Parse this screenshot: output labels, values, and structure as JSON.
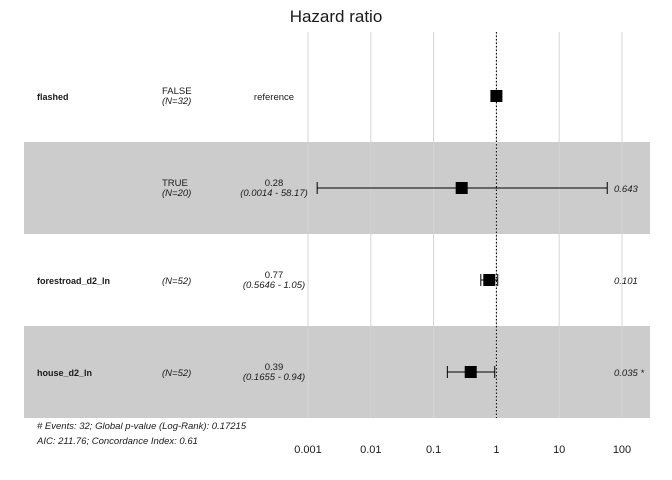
{
  "chart_data": {
    "type": "forest",
    "title": "Hazard ratio",
    "x_scale": "log10",
    "xlim": [
      0.0003,
      300
    ],
    "x_ticks": [
      0.001,
      0.01,
      0.1,
      1,
      10,
      100
    ],
    "x_tick_labels": [
      "0.001",
      "0.01",
      "0.1",
      "1",
      "10",
      "100"
    ],
    "reference_line": 1,
    "rows": [
      {
        "variable": "flashed",
        "level": "FALSE",
        "n": "(N=32)",
        "estimate_text": "reference",
        "ci_text": "",
        "p_text": "",
        "hr": 1,
        "lower": null,
        "upper": null,
        "shaded": false
      },
      {
        "variable": "",
        "level": "TRUE",
        "n": "(N=20)",
        "estimate_text": "0.28",
        "ci_text": "(0.0014 - 58.17)",
        "p_text": "0.643",
        "hr": 0.28,
        "lower": 0.0014,
        "upper": 58.17,
        "shaded": true
      },
      {
        "variable": "forestroad_d2_ln",
        "level": "",
        "n": "(N=52)",
        "estimate_text": "0.77",
        "ci_text": "(0.5646 -  1.05)",
        "p_text": "0.101",
        "hr": 0.77,
        "lower": 0.5646,
        "upper": 1.05,
        "shaded": false
      },
      {
        "variable": "house_d2_ln",
        "level": "",
        "n": "(N=52)",
        "estimate_text": "0.39",
        "ci_text": "(0.1655 -  0.94)",
        "p_text": "0.035 *",
        "hr": 0.39,
        "lower": 0.1655,
        "upper": 0.94,
        "shaded": true
      }
    ],
    "footer": [
      "# Events: 32; Global p-value (Log-Rank): 0.17215",
      "AIC: 211.76; Concordance Index: 0.61"
    ]
  },
  "colors": {
    "shade": "#cccccc",
    "grid": "#d4d4d4",
    "marker": "#000000",
    "text": "#1a1a1a"
  }
}
